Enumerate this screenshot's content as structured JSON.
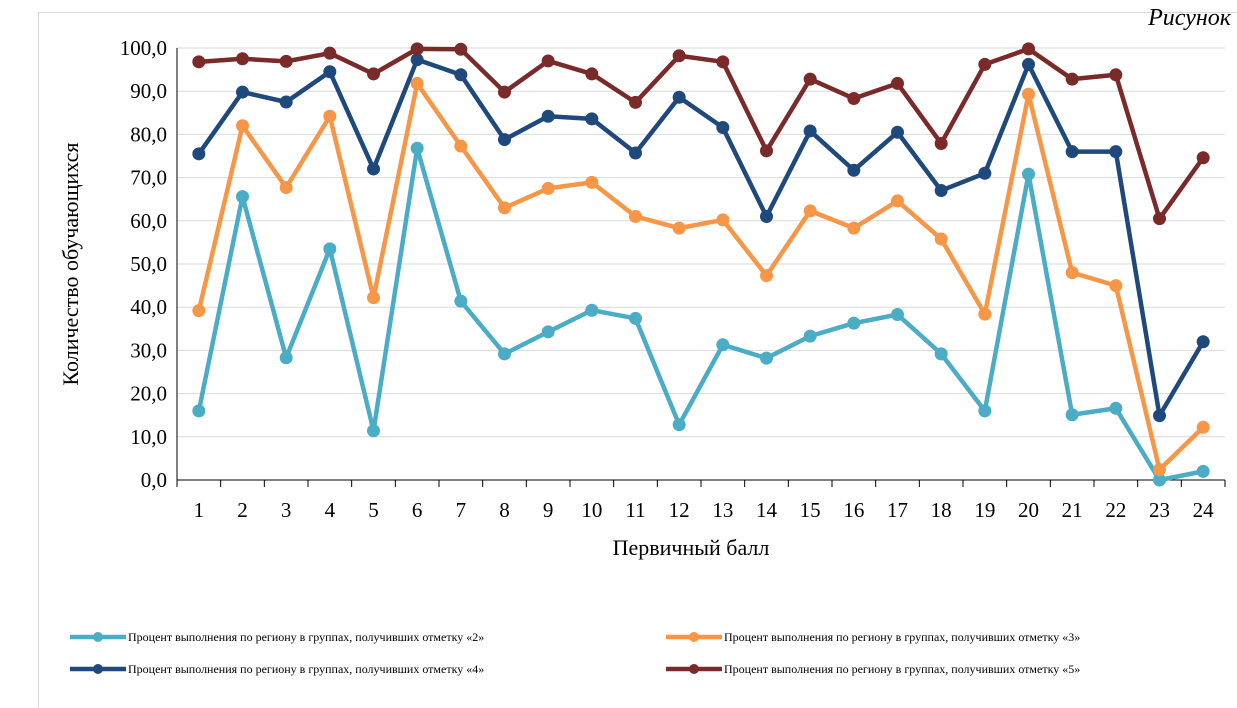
{
  "caption": "Рисунок",
  "chart_data": {
    "type": "line",
    "title": "",
    "xlabel": "Первичный балл",
    "ylabel": "Количество обучающихся",
    "ylim": [
      0,
      100
    ],
    "y_ticks": [
      "0,0",
      "10,0",
      "20,0",
      "30,0",
      "40,0",
      "50,0",
      "60,0",
      "70,0",
      "80,0",
      "90,0",
      "100,0"
    ],
    "categories": [
      "1",
      "2",
      "3",
      "4",
      "5",
      "6",
      "7",
      "8",
      "9",
      "10",
      "11",
      "12",
      "13",
      "14",
      "15",
      "16",
      "17",
      "18",
      "19",
      "20",
      "21",
      "22",
      "23",
      "24"
    ],
    "grid": "horizontal",
    "legend_position": "bottom",
    "series": [
      {
        "name": "Процент выполнения по региону в группах, получивших отметку «2»",
        "color": "#4bacc6",
        "values": [
          16.0,
          65.6,
          28.3,
          53.5,
          11.4,
          76.8,
          41.4,
          29.2,
          34.3,
          39.3,
          37.4,
          12.8,
          31.3,
          28.2,
          33.3,
          36.3,
          38.3,
          29.2,
          16.0,
          70.8,
          15.1,
          16.6,
          0.0,
          2.0
        ]
      },
      {
        "name": "Процент выполнения по региону в группах, получивших отметку «3»",
        "color": "#f79646",
        "values": [
          39.2,
          82.0,
          67.7,
          84.2,
          42.2,
          91.8,
          77.3,
          63.0,
          67.5,
          68.9,
          61.0,
          58.3,
          60.2,
          47.3,
          62.3,
          58.3,
          64.6,
          55.8,
          38.4,
          89.3,
          48.0,
          45.0,
          2.4,
          12.2
        ]
      },
      {
        "name": "Процент выполнения по региону в группах, получивших отметку «4»",
        "color": "#1f497d",
        "values": [
          75.5,
          89.8,
          87.5,
          94.5,
          72.0,
          97.3,
          93.8,
          78.8,
          84.2,
          83.6,
          75.7,
          88.6,
          81.6,
          61.0,
          80.8,
          71.7,
          80.5,
          67.0,
          71.0,
          96.2,
          76.0,
          76.0,
          14.9,
          32.0
        ]
      },
      {
        "name": "Процент выполнения по региону в группах, получивших отметку «5»",
        "color": "#7b2a2a",
        "values": [
          96.8,
          97.5,
          96.9,
          98.8,
          94.0,
          99.8,
          99.7,
          89.8,
          97.0,
          94.0,
          87.4,
          98.2,
          96.8,
          76.2,
          92.8,
          88.3,
          91.8,
          77.9,
          96.2,
          99.8,
          92.8,
          93.8,
          60.5,
          74.6
        ]
      }
    ]
  }
}
